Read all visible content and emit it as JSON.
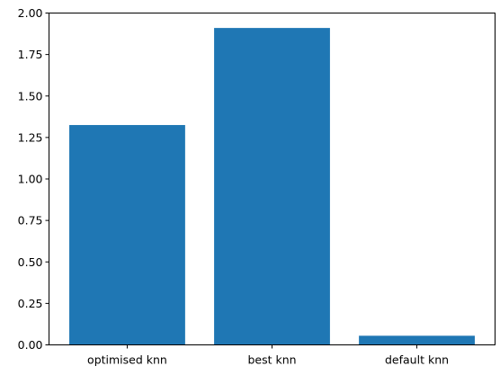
{
  "chart_data": {
    "type": "bar",
    "title": "",
    "xlabel": "",
    "ylabel": "",
    "categories": [
      "optimised knn",
      "best knn",
      "default knn"
    ],
    "values": [
      1.325,
      1.91,
      0.055
    ],
    "ylim": [
      0,
      2.0
    ],
    "yticks": [
      "0.00",
      "0.25",
      "0.50",
      "0.75",
      "1.00",
      "1.25",
      "1.50",
      "1.75",
      "2.00"
    ],
    "grid": false,
    "bar_color": "#1f77b4"
  }
}
